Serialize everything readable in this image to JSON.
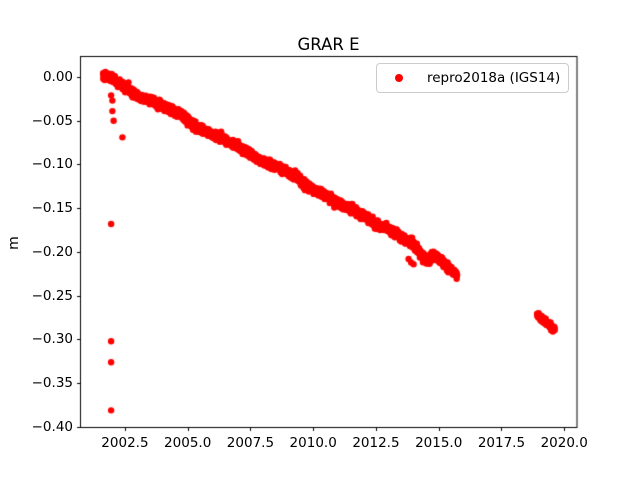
{
  "figure": {
    "background_color": "#ffffff",
    "text_color": "#000000",
    "spine_color": "#000000"
  },
  "legend": {
    "label": "repro2018a (IGS14)",
    "marker_color": "#ff0000",
    "border_color": "#cccccc",
    "position": "upper right"
  },
  "chart_data": {
    "type": "scatter",
    "title": "GRAR E",
    "ylabel": "m",
    "series_name": "repro2018a (IGS14)",
    "marker": {
      "shape": "circle",
      "color": "#ff0000",
      "radius_px": 3.2
    },
    "grid": false,
    "xlim": [
      2000.73,
      2020.51
    ],
    "ylim": [
      -0.4006,
      0.0234
    ],
    "xticks": [
      {
        "value": 2002.5,
        "label": "2002.5"
      },
      {
        "value": 2005.0,
        "label": "2005.0"
      },
      {
        "value": 2007.5,
        "label": "2007.5"
      },
      {
        "value": 2010.0,
        "label": "2010.0"
      },
      {
        "value": 2012.5,
        "label": "2012.5"
      },
      {
        "value": 2015.0,
        "label": "2015.0"
      },
      {
        "value": 2017.5,
        "label": "2017.5"
      },
      {
        "value": 2020.0,
        "label": "2020.0"
      }
    ],
    "yticks": [
      {
        "value": 0.0,
        "label": "0.00"
      },
      {
        "value": -0.05,
        "label": "−0.05"
      },
      {
        "value": -0.1,
        "label": "−0.10"
      },
      {
        "value": -0.15,
        "label": "−0.15"
      },
      {
        "value": -0.2,
        "label": "−0.20"
      },
      {
        "value": -0.25,
        "label": "−0.25"
      },
      {
        "value": -0.3,
        "label": "−0.30"
      },
      {
        "value": -0.35,
        "label": "−0.35"
      },
      {
        "value": -0.4,
        "label": "−0.40"
      }
    ],
    "trend_slope_m_per_yr": -0.0163,
    "segments": [
      {
        "name": "main-trend",
        "x_start": 2001.63,
        "x_end": 2015.73,
        "points_per_year": 190,
        "noise_sd": 0.0022,
        "anchors": [
          [
            2001.63,
            0.002
          ],
          [
            2001.95,
            -0.001
          ],
          [
            2002.3,
            -0.008
          ],
          [
            2002.7,
            -0.016
          ],
          [
            2003.1,
            -0.023
          ],
          [
            2003.6,
            -0.027
          ],
          [
            2004.1,
            -0.035
          ],
          [
            2004.7,
            -0.042
          ],
          [
            2005.3,
            -0.057
          ],
          [
            2005.85,
            -0.064
          ],
          [
            2006.4,
            -0.071
          ],
          [
            2007.2,
            -0.082
          ],
          [
            2007.8,
            -0.094
          ],
          [
            2008.5,
            -0.102
          ],
          [
            2009.0,
            -0.109
          ],
          [
            2009.4,
            -0.115
          ],
          [
            2009.8,
            -0.126
          ],
          [
            2010.2,
            -0.131
          ],
          [
            2010.7,
            -0.139
          ],
          [
            2011.1,
            -0.146
          ],
          [
            2011.6,
            -0.152
          ],
          [
            2012.0,
            -0.158
          ],
          [
            2012.55,
            -0.169
          ],
          [
            2013.0,
            -0.174
          ],
          [
            2013.55,
            -0.184
          ],
          [
            2014.0,
            -0.19
          ],
          [
            2014.35,
            -0.205
          ],
          [
            2014.6,
            -0.21
          ],
          [
            2014.8,
            -0.204
          ],
          [
            2015.0,
            -0.207
          ],
          [
            2015.2,
            -0.213
          ],
          [
            2015.45,
            -0.219
          ],
          [
            2015.73,
            -0.226
          ]
        ]
      },
      {
        "name": "cluster-2019",
        "x_start": 2018.92,
        "x_end": 2019.62,
        "points_per_year": 160,
        "noise_sd": 0.0018,
        "anchors": [
          [
            2018.92,
            -0.272
          ],
          [
            2019.62,
            -0.289
          ]
        ]
      }
    ],
    "outliers": [
      [
        2001.95,
        -0.021
      ],
      [
        2002.0,
        -0.027
      ],
      [
        2002.0,
        -0.039
      ],
      [
        2002.05,
        -0.05
      ],
      [
        2002.4,
        -0.069
      ],
      [
        2001.95,
        -0.168
      ],
      [
        2001.95,
        -0.302
      ],
      [
        2001.95,
        -0.326
      ],
      [
        2001.95,
        -0.381
      ],
      [
        2013.8,
        -0.208
      ],
      [
        2013.9,
        -0.212
      ],
      [
        2014.0,
        -0.214
      ]
    ]
  }
}
